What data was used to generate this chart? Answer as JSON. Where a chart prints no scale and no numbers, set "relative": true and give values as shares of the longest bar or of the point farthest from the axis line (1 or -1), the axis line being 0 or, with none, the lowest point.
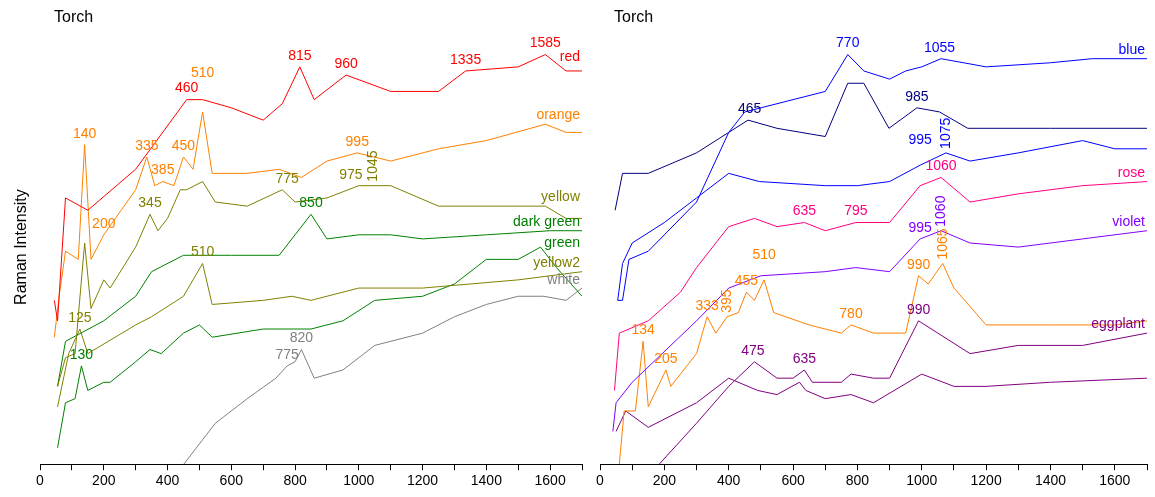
{
  "chart_data": [
    {
      "type": "line",
      "title": "Torch",
      "ylabel": "Raman Intensity",
      "relative": true,
      "xlim": [
        0,
        1700
      ],
      "xticks": [
        0,
        {
          "value": 100,
          "label": null
        },
        200,
        {
          "value": 300,
          "label": null
        },
        400,
        {
          "value": 500,
          "label": null
        },
        600,
        {
          "value": 700,
          "label": null
        },
        800,
        {
          "value": 900,
          "label": null
        },
        1000,
        {
          "value": 1100,
          "label": null
        },
        1200,
        {
          "value": 1300,
          "label": null
        },
        1400,
        {
          "value": 1500,
          "label": null
        },
        1600,
        {
          "value": 1700,
          "label": null
        }
      ],
      "tick_labels": "x",
      "legend": false,
      "grid": false,
      "marker": "none",
      "line_style": "solid",
      "series": [
        {
          "name": "red",
          "color": "#ff0000",
          "x": [
            45,
            55,
            80,
            150,
            300,
            460,
            510,
            600,
            700,
            760,
            815,
            860,
            960,
            1100,
            1250,
            1335,
            1500,
            1585,
            1650,
            1700
          ],
          "values": [
            0.4,
            0.35,
            0.65,
            0.62,
            0.72,
            0.89,
            0.89,
            0.87,
            0.84,
            0.88,
            0.97,
            0.89,
            0.95,
            0.91,
            0.91,
            0.96,
            0.97,
            1.0,
            0.96,
            0.96
          ]
        },
        {
          "name": "orange",
          "color": "#ff8000",
          "x": [
            45,
            60,
            80,
            120,
            140,
            160,
            200,
            300,
            335,
            360,
            385,
            420,
            450,
            480,
            510,
            540,
            650,
            750,
            820,
            900,
            995,
            1100,
            1250,
            1400,
            1585,
            1650,
            1700
          ],
          "values": [
            0.31,
            0.41,
            0.52,
            0.5,
            0.78,
            0.5,
            0.56,
            0.67,
            0.75,
            0.68,
            0.69,
            0.68,
            0.75,
            0.72,
            0.86,
            0.71,
            0.71,
            0.72,
            0.7,
            0.74,
            0.76,
            0.74,
            0.77,
            0.79,
            0.83,
            0.81,
            0.81
          ]
        },
        {
          "name": "yellow",
          "color": "#808000",
          "x": [
            55,
            80,
            110,
            140,
            160,
            200,
            220,
            300,
            345,
            370,
            400,
            440,
            460,
            510,
            550,
            650,
            760,
            800,
            900,
            1000,
            1100,
            1250,
            1400,
            1585,
            1650,
            1700
          ],
          "values": [
            0.19,
            0.26,
            0.27,
            0.54,
            0.38,
            0.45,
            0.43,
            0.53,
            0.61,
            0.57,
            0.6,
            0.67,
            0.67,
            0.69,
            0.64,
            0.63,
            0.67,
            0.64,
            0.65,
            0.68,
            0.68,
            0.63,
            0.63,
            0.63,
            0.6,
            0.6
          ]
        },
        {
          "name": "dark green",
          "color": "#008000",
          "x": [
            55,
            80,
            200,
            300,
            350,
            450,
            600,
            750,
            850,
            900,
            1000,
            1100,
            1200,
            1400,
            1600,
            1700
          ],
          "values": [
            0.19,
            0.3,
            0.35,
            0.41,
            0.47,
            0.51,
            0.51,
            0.51,
            0.61,
            0.55,
            0.56,
            0.56,
            0.55,
            0.56,
            0.57,
            0.57
          ]
        },
        {
          "name": "yellow2",
          "color": "#808000",
          "x": [
            55,
            90,
            125,
            150,
            300,
            350,
            450,
            510,
            540,
            700,
            790,
            850,
            1000,
            1200,
            1500,
            1700
          ],
          "values": [
            0.14,
            0.27,
            0.33,
            0.27,
            0.34,
            0.36,
            0.41,
            0.49,
            0.39,
            0.4,
            0.41,
            0.4,
            0.43,
            0.43,
            0.45,
            0.47
          ]
        },
        {
          "name": "green",
          "color": "#008000",
          "x": [
            55,
            80,
            110,
            130,
            150,
            200,
            220,
            300,
            345,
            380,
            450,
            500,
            540,
            700,
            850,
            950,
            1050,
            1200,
            1300,
            1400,
            1500,
            1570,
            1620,
            1700
          ],
          "values": [
            0.04,
            0.15,
            0.16,
            0.24,
            0.18,
            0.2,
            0.2,
            0.25,
            0.28,
            0.27,
            0.32,
            0.34,
            0.31,
            0.33,
            0.33,
            0.35,
            0.4,
            0.41,
            0.44,
            0.5,
            0.5,
            0.53,
            0.48,
            0.41
          ]
        },
        {
          "name": "white",
          "color": "#808080",
          "x": [
            451,
            550,
            650,
            740,
            775,
            800,
            820,
            860,
            950,
            1050,
            1200,
            1300,
            1400,
            1500,
            1580,
            1650,
            1700
          ],
          "values": [
            0,
            0.1,
            0.16,
            0.21,
            0.24,
            0.25,
            0.28,
            0.21,
            0.23,
            0.29,
            0.32,
            0.36,
            0.39,
            0.41,
            0.41,
            0.4,
            0.43
          ]
        }
      ],
      "annotations": [
        {
          "text": "460",
          "x": 460,
          "y": 0.89
        },
        {
          "text": "815",
          "x": 815,
          "y": 0.97
        },
        {
          "text": "960",
          "x": 960,
          "y": 0.95
        },
        {
          "text": "1335",
          "x": 1335,
          "y": 0.96
        },
        {
          "text": "1585",
          "x": 1585,
          "y": 1.0
        },
        {
          "text": "140",
          "x": 140,
          "y": 0.78
        },
        {
          "text": "335",
          "x": 335,
          "y": 0.75
        },
        {
          "text": "385",
          "x": 385,
          "y": 0.69
        },
        {
          "text": "450",
          "x": 450,
          "y": 0.75
        },
        {
          "text": "510",
          "x": 510,
          "y": 0.86
        },
        {
          "text": "995",
          "x": 995,
          "y": 0.76
        },
        {
          "text": "200",
          "x": 200,
          "y": 0.56
        },
        {
          "text": "345",
          "x": 345,
          "y": 0.61
        },
        {
          "text": "775",
          "x": 775,
          "y": 0.67
        },
        {
          "text": "975",
          "x": 975,
          "y": 0.68
        },
        {
          "text": "1045",
          "x": 1045,
          "y": 0.68
        },
        {
          "text": "510",
          "x": 510,
          "y": 0.49
        },
        {
          "text": "125",
          "x": 125,
          "y": 0.33
        },
        {
          "text": "850",
          "x": 850,
          "y": 0.61
        },
        {
          "text": "130",
          "x": 130,
          "y": 0.24
        },
        {
          "text": "820",
          "x": 820,
          "y": 0.28
        },
        {
          "text": "775",
          "x": 775,
          "y": 0.24
        }
      ]
    },
    {
      "type": "line",
      "title": "Torch",
      "relative": true,
      "xlim": [
        0,
        1700
      ],
      "xticks": [
        0,
        {
          "value": 100,
          "label": null
        },
        200,
        {
          "value": 300,
          "label": null
        },
        400,
        {
          "value": 500,
          "label": null
        },
        600,
        {
          "value": 700,
          "label": null
        },
        800,
        {
          "value": 900,
          "label": null
        },
        1000,
        {
          "value": 1100,
          "label": null
        },
        1200,
        {
          "value": 1300,
          "label": null
        },
        1400,
        {
          "value": 1500,
          "label": null
        },
        1600,
        {
          "value": 1700,
          "label": null
        }
      ],
      "tick_labels": "x",
      "legend": false,
      "grid": false,
      "marker": "none",
      "line_style": "solid",
      "series": [
        {
          "name": "blue",
          "color": "#0000ff",
          "x": [
            55,
            70,
            90,
            150,
            300,
            400,
            450,
            550,
            700,
            770,
            820,
            900,
            950,
            1000,
            1060,
            1200,
            1400,
            1530,
            1700
          ],
          "values": [
            0.4,
            0.4,
            0.5,
            0.52,
            0.64,
            0.81,
            0.86,
            0.88,
            0.91,
            1.0,
            0.96,
            0.94,
            0.96,
            0.97,
            0.99,
            0.97,
            0.98,
            0.99,
            0.99
          ]
        },
        {
          "color": "#000080",
          "x": [
            47,
            70,
            150,
            300,
            400,
            460,
            550,
            700,
            770,
            820,
            898,
            985,
            1055,
            1143,
            1400,
            1700
          ],
          "values": [
            0.62,
            0.71,
            0.71,
            0.76,
            0.81,
            0.84,
            0.82,
            0.8,
            0.93,
            0.93,
            0.82,
            0.87,
            0.86,
            0.82,
            0.82,
            0.82
          ]
        },
        {
          "color": "#0000ff",
          "x": [
            55,
            70,
            100,
            200,
            300,
            400,
            495,
            700,
            800,
            900,
            995,
            1075,
            1150,
            1300,
            1500,
            1600,
            1700
          ],
          "values": [
            0.4,
            0.49,
            0.54,
            0.59,
            0.65,
            0.71,
            0.69,
            0.68,
            0.68,
            0.69,
            0.73,
            0.76,
            0.74,
            0.76,
            0.79,
            0.77,
            0.77
          ]
        },
        {
          "name": "rose",
          "color": "#ff0080",
          "x": [
            45,
            60,
            150,
            250,
            300,
            400,
            480,
            550,
            635,
            700,
            795,
            900,
            995,
            1060,
            1150,
            1300,
            1500,
            1700
          ],
          "values": [
            0.18,
            0.32,
            0.35,
            0.42,
            0.48,
            0.58,
            0.6,
            0.58,
            0.59,
            0.57,
            0.59,
            0.59,
            0.68,
            0.7,
            0.64,
            0.66,
            0.68,
            0.69
          ]
        },
        {
          "name": "violet",
          "color": "#8000ff",
          "x": [
            40,
            50,
            100,
            300,
            400,
            500,
            700,
            795,
            900,
            995,
            1060,
            1150,
            1300,
            1500,
            1700
          ],
          "values": [
            0.08,
            0.15,
            0.2,
            0.35,
            0.43,
            0.46,
            0.47,
            0.48,
            0.47,
            0.55,
            0.57,
            0.54,
            0.53,
            0.55,
            0.57
          ]
        },
        {
          "color": "#ff8000",
          "x": [
            60,
            75,
            110,
            134,
            150,
            205,
            220,
            300,
            333,
            360,
            395,
            430,
            455,
            480,
            510,
            540,
            650,
            750,
            780,
            850,
            950,
            990,
            1020,
            1065,
            1100,
            1200,
            1400,
            1600,
            1700
          ],
          "values": [
            0,
            0.13,
            0.13,
            0.3,
            0.14,
            0.23,
            0.19,
            0.27,
            0.36,
            0.32,
            0.36,
            0.37,
            0.42,
            0.4,
            0.45,
            0.37,
            0.34,
            0.32,
            0.34,
            0.32,
            0.32,
            0.46,
            0.44,
            0.49,
            0.43,
            0.34,
            0.34,
            0.34,
            0.35
          ]
        },
        {
          "name": "eggplant",
          "color": "#800080",
          "x": [
            184,
            300,
            400,
            480,
            550,
            600,
            635,
            660,
            750,
            780,
            850,
            900,
            990,
            1050,
            1150,
            1300,
            1500,
            1700
          ],
          "values": [
            0,
            0.1,
            0.19,
            0.25,
            0.21,
            0.21,
            0.23,
            0.2,
            0.2,
            0.22,
            0.21,
            0.21,
            0.35,
            0.32,
            0.27,
            0.29,
            0.29,
            0.32
          ]
        },
        {
          "color": "#800080",
          "x": [
            50,
            80,
            150,
            300,
            400,
            490,
            550,
            620,
            640,
            700,
            780,
            850,
            1000,
            1100,
            1200,
            1400,
            1700
          ],
          "values": [
            0.08,
            0.13,
            0.09,
            0.15,
            0.21,
            0.18,
            0.17,
            0.2,
            0.18,
            0.16,
            0.17,
            0.15,
            0.22,
            0.19,
            0.19,
            0.2,
            0.21
          ]
        }
      ],
      "annotations": [
        {
          "text": "770",
          "x": 770,
          "y": 1.0
        },
        {
          "text": "465",
          "x": 465,
          "y": 0.84
        },
        {
          "text": "985",
          "x": 985,
          "y": 0.87
        },
        {
          "text": "1055",
          "x": 1055,
          "y": 0.99
        },
        {
          "text": "1060",
          "x": 1060,
          "y": 0.7
        },
        {
          "text": "995",
          "x": 995,
          "y": 0.73
        },
        {
          "text": "1075",
          "x": 1075,
          "y": 0.76
        },
        {
          "text": "635",
          "x": 635,
          "y": 0.59
        },
        {
          "text": "795",
          "x": 795,
          "y": 0.59
        },
        {
          "text": "995",
          "x": 995,
          "y": 0.55
        },
        {
          "text": "1060",
          "x": 1060,
          "y": 0.57
        },
        {
          "text": "134",
          "x": 134,
          "y": 0.3
        },
        {
          "text": "205",
          "x": 205,
          "y": 0.23
        },
        {
          "text": "333",
          "x": 333,
          "y": 0.36
        },
        {
          "text": "395",
          "x": 395,
          "y": 0.36
        },
        {
          "text": "455",
          "x": 455,
          "y": 0.42
        },
        {
          "text": "510",
          "x": 510,
          "y": 0.45
        },
        {
          "text": "780",
          "x": 780,
          "y": 0.34
        },
        {
          "text": "990",
          "x": 990,
          "y": 0.46
        },
        {
          "text": "1065",
          "x": 1065,
          "y": 0.49
        },
        {
          "text": "475",
          "x": 475,
          "y": 0.25
        },
        {
          "text": "635",
          "x": 635,
          "y": 0.23
        },
        {
          "text": "990",
          "x": 990,
          "y": 0.35
        }
      ]
    }
  ]
}
